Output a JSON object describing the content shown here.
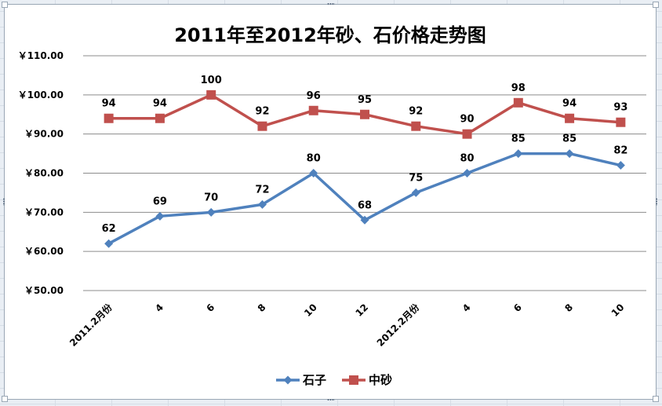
{
  "chart_data": {
    "type": "line",
    "title": "2011年至2012年砂、石价格走势图",
    "categories": [
      "2011.2月份",
      "4",
      "6",
      "8",
      "10",
      "12",
      "2012.2月份",
      "4",
      "6",
      "8",
      "10"
    ],
    "series": [
      {
        "name": "石子",
        "color": "#4f81bd",
        "marker": "diamond",
        "values": [
          62,
          69,
          70,
          72,
          80,
          68,
          75,
          80,
          85,
          85,
          82
        ]
      },
      {
        "name": "中砂",
        "color": "#c0504d",
        "marker": "square",
        "values": [
          94,
          94,
          100,
          92,
          96,
          95,
          92,
          90,
          98,
          94,
          93
        ]
      }
    ],
    "ylim": [
      50,
      110
    ],
    "y_ticks": [
      50,
      60,
      70,
      80,
      90,
      100,
      110
    ],
    "y_tick_labels": [
      "￥50.00",
      "￥60.00",
      "￥70.00",
      "￥80.00",
      "￥90.00",
      "￥100.00",
      "￥110.00"
    ],
    "grid": true,
    "legend": "bottom",
    "data_labels": true,
    "xlabel": "",
    "ylabel": ""
  }
}
